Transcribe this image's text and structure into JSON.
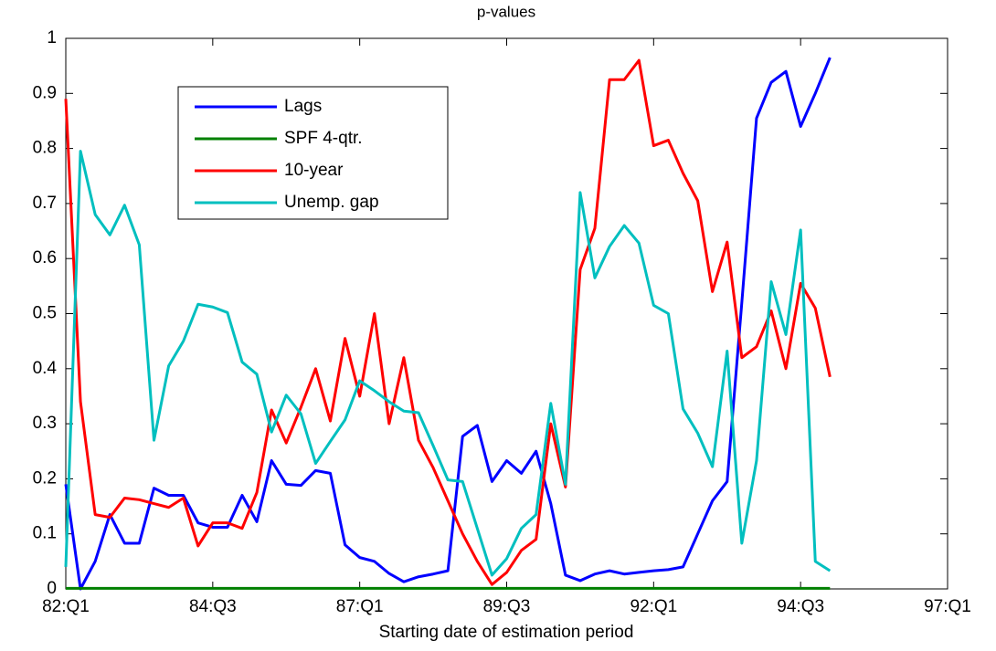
{
  "chart_data": {
    "type": "line",
    "title": "p-values",
    "x_label": "Starting date of estimation period",
    "x": [
      0,
      1,
      2,
      3,
      4,
      5,
      6,
      7,
      8,
      9,
      10,
      11,
      12,
      13,
      14,
      15,
      16,
      17,
      18,
      19,
      20,
      21,
      22,
      23,
      24,
      25,
      26,
      27,
      28,
      29,
      30,
      31,
      32,
      33,
      34,
      35,
      36,
      37,
      38,
      39,
      40,
      41,
      42,
      43,
      44,
      45,
      46,
      47,
      48,
      49,
      50,
      51,
      52
    ],
    "xlim": [
      0,
      60
    ],
    "xticks": [
      {
        "value": 0,
        "label": "82:Q1"
      },
      {
        "value": 10,
        "label": "84:Q3"
      },
      {
        "value": 20,
        "label": "87:Q1"
      },
      {
        "value": 30,
        "label": "89:Q3"
      },
      {
        "value": 40,
        "label": "92:Q1"
      },
      {
        "value": 50,
        "label": "94:Q3"
      },
      {
        "value": 60,
        "label": "97:Q1"
      }
    ],
    "ylim": [
      0,
      1
    ],
    "yticks": [
      0,
      0.1,
      0.2,
      0.3,
      0.4,
      0.5,
      0.6,
      0.7,
      0.8,
      0.9,
      1
    ],
    "legend": "upper left",
    "series": [
      {
        "name": "Lags",
        "color": "#0000ff",
        "values": [
          0.19,
          0,
          0.05,
          0.135,
          0.083,
          0.083,
          0.183,
          0.17,
          0.17,
          0.12,
          0.112,
          0.112,
          0.17,
          0.122,
          0.233,
          0.19,
          0.188,
          0.215,
          0.21,
          0.08,
          0.057,
          0.05,
          0.028,
          0.013,
          0.022,
          0.027,
          0.033,
          0.277,
          0.297,
          0.195,
          0.233,
          0.21,
          0.25,
          0.155,
          0.025,
          0.015,
          0.027,
          0.033,
          0.027,
          0.03,
          0.033,
          0.035,
          0.04,
          0.1,
          0.16,
          0.195,
          0.52,
          0.855,
          0.92,
          0.94,
          0.84,
          0.9,
          0.965
        ]
      },
      {
        "name": "SPF 4-qtr.",
        "color": "#008000",
        "values": [
          0.001,
          0.001,
          0.001,
          0.001,
          0.001,
          0.001,
          0.001,
          0.001,
          0.001,
          0.001,
          0.001,
          0.001,
          0.001,
          0.001,
          0.001,
          0.001,
          0.001,
          0.001,
          0.001,
          0.001,
          0.001,
          0.001,
          0.001,
          0.001,
          0.001,
          0.001,
          0.001,
          0.001,
          0.001,
          0.001,
          0.001,
          0.001,
          0.001,
          0.001,
          0.001,
          0.001,
          0.001,
          0.001,
          0.001,
          0.001,
          0.001,
          0.001,
          0.001,
          0.001,
          0.001,
          0.001,
          0.001,
          0.001,
          0.001,
          0.001,
          0.001,
          0.001,
          0.001
        ]
      },
      {
        "name": "10-year",
        "color": "#ff0000",
        "values": [
          0.89,
          0.34,
          0.135,
          0.13,
          0.165,
          0.162,
          0.155,
          0.148,
          0.165,
          0.078,
          0.12,
          0.12,
          0.11,
          0.175,
          0.325,
          0.265,
          0.33,
          0.4,
          0.305,
          0.455,
          0.35,
          0.5,
          0.3,
          0.42,
          0.27,
          0.22,
          0.16,
          0.1,
          0.05,
          0.008,
          0.03,
          0.07,
          0.09,
          0.3,
          0.185,
          0.58,
          0.655,
          0.925,
          0.925,
          0.96,
          0.805,
          0.815,
          0.755,
          0.705,
          0.54,
          0.63,
          0.42,
          0.44,
          0.505,
          0.4,
          0.555,
          0.51,
          0.385
        ]
      },
      {
        "name": "Unemp. gap",
        "color": "#00bfbf",
        "values": [
          0.04,
          0.795,
          0.68,
          0.643,
          0.697,
          0.625,
          0.27,
          0.405,
          0.45,
          0.517,
          0.512,
          0.502,
          0.412,
          0.39,
          0.285,
          0.352,
          0.318,
          0.228,
          0.268,
          0.307,
          0.378,
          0.36,
          0.34,
          0.323,
          0.32,
          0.26,
          0.198,
          0.195,
          0.11,
          0.025,
          0.055,
          0.11,
          0.135,
          0.337,
          0.19,
          0.72,
          0.565,
          0.622,
          0.66,
          0.628,
          0.515,
          0.5,
          0.327,
          0.283,
          0.222,
          0.432,
          0.083,
          0.233,
          0.558,
          0.462,
          0.652,
          0.05,
          0.033
        ]
      }
    ]
  }
}
